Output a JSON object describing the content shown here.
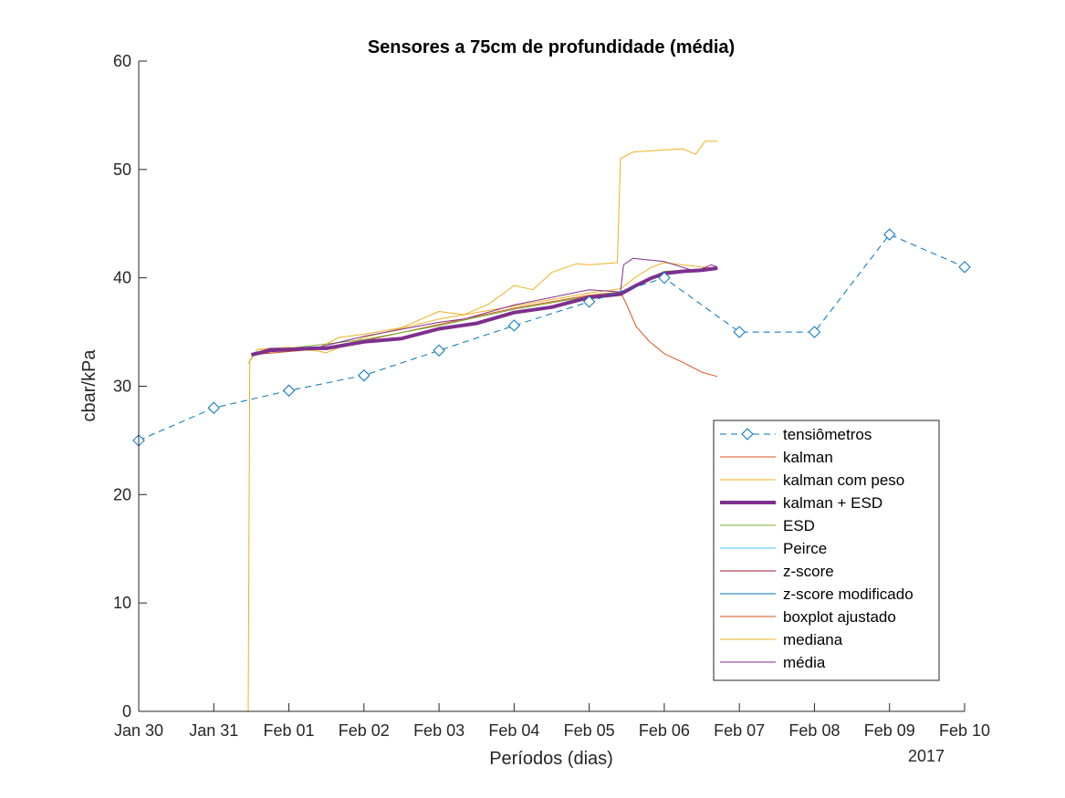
{
  "chart_data": {
    "type": "line",
    "title": "Sensores a 75cm de profundidade (média)",
    "xlabel": "Períodos (dias)",
    "ylabel": "cbar/kPa",
    "x_year_label": "2017",
    "xlim": [
      "2017-01-30",
      "2017-02-10"
    ],
    "ylim": [
      0,
      60
    ],
    "yticks": [
      0,
      10,
      20,
      30,
      40,
      50,
      60
    ],
    "xticks": [
      {
        "date": "2017-01-30",
        "label": "Jan 30"
      },
      {
        "date": "2017-01-31",
        "label": "Jan 31"
      },
      {
        "date": "2017-02-01",
        "label": "Feb 01"
      },
      {
        "date": "2017-02-02",
        "label": "Feb 02"
      },
      {
        "date": "2017-02-03",
        "label": "Feb 03"
      },
      {
        "date": "2017-02-04",
        "label": "Feb 04"
      },
      {
        "date": "2017-02-05",
        "label": "Feb 05"
      },
      {
        "date": "2017-02-06",
        "label": "Feb 06"
      },
      {
        "date": "2017-02-07",
        "label": "Feb 07"
      },
      {
        "date": "2017-02-08",
        "label": "Feb 08"
      },
      {
        "date": "2017-02-09",
        "label": "Feb 09"
      },
      {
        "date": "2017-02-10",
        "label": "Feb 10"
      }
    ],
    "grid": false,
    "legend_position": "lower-right",
    "series": [
      {
        "name": "tensiômetros",
        "color": "#0072BD",
        "style": "dashed",
        "marker": "diamond",
        "points": [
          [
            "2017-01-30 00:00",
            25
          ],
          [
            "2017-01-31 00:00",
            28
          ],
          [
            "2017-02-01 00:00",
            29.6
          ],
          [
            "2017-02-02 00:00",
            31
          ],
          [
            "2017-02-03 00:00",
            33.3
          ],
          [
            "2017-02-04 00:00",
            35.6
          ],
          [
            "2017-02-05 00:00",
            37.8
          ],
          [
            "2017-02-06 00:00",
            40
          ],
          [
            "2017-02-07 00:00",
            35
          ],
          [
            "2017-02-08 00:00",
            35
          ],
          [
            "2017-02-09 00:00",
            44
          ],
          [
            "2017-02-10 00:00",
            41
          ]
        ]
      },
      {
        "name": "kalman",
        "color": "#D95319",
        "style": "solid",
        "points": [
          [
            "2017-01-31 12:00",
            32.9
          ],
          [
            "2017-02-01 08:00",
            33.4
          ],
          [
            "2017-02-02 00:00",
            34.2
          ],
          [
            "2017-02-03 00:00",
            35.7
          ],
          [
            "2017-02-04 00:00",
            37.2
          ],
          [
            "2017-02-05 00:00",
            38.4
          ],
          [
            "2017-02-05 10:00",
            38.7
          ],
          [
            "2017-02-05 12:00",
            37.5
          ],
          [
            "2017-02-05 15:00",
            35.5
          ],
          [
            "2017-02-05 19:00",
            34.2
          ],
          [
            "2017-02-06 00:00",
            33.0
          ],
          [
            "2017-02-06 06:00",
            32.2
          ],
          [
            "2017-02-06 12:00",
            31.3
          ],
          [
            "2017-02-06 17:00",
            30.9
          ]
        ]
      },
      {
        "name": "kalman com peso",
        "color": "#EDB120",
        "style": "solid",
        "points": [
          [
            "2017-01-31 11:00",
            32.1
          ],
          [
            "2017-01-31 14:00",
            33.4
          ],
          [
            "2017-02-01 08:00",
            33.3
          ],
          [
            "2017-02-01 12:00",
            33.1
          ],
          [
            "2017-02-02 00:00",
            34.5
          ],
          [
            "2017-02-03 00:00",
            36.2
          ],
          [
            "2017-02-04 00:00",
            37.4
          ],
          [
            "2017-02-05 00:00",
            38.6
          ],
          [
            "2017-02-05 10:00",
            39.0
          ],
          [
            "2017-02-05 15:00",
            40.1
          ],
          [
            "2017-02-05 20:00",
            41.0
          ],
          [
            "2017-02-06 00:00",
            41.4
          ],
          [
            "2017-02-06 12:00",
            41.0
          ],
          [
            "2017-02-06 17:00",
            40.9
          ]
        ]
      },
      {
        "name": "kalman + ESD",
        "color": "#7E2F8E",
        "style": "solid",
        "width": 4,
        "points": [
          [
            "2017-01-31 12:00",
            32.9
          ],
          [
            "2017-01-31 18:00",
            33.3
          ],
          [
            "2017-02-01 08:00",
            33.5
          ],
          [
            "2017-02-01 12:00",
            33.5
          ],
          [
            "2017-02-02 00:00",
            34.1
          ],
          [
            "2017-02-02 12:00",
            34.4
          ],
          [
            "2017-02-03 00:00",
            35.3
          ],
          [
            "2017-02-03 12:00",
            35.8
          ],
          [
            "2017-02-04 00:00",
            36.8
          ],
          [
            "2017-02-04 12:00",
            37.3
          ],
          [
            "2017-02-05 00:00",
            38.2
          ],
          [
            "2017-02-05 10:00",
            38.5
          ],
          [
            "2017-02-05 15:00",
            39.3
          ],
          [
            "2017-02-05 20:00",
            40.0
          ],
          [
            "2017-02-06 00:00",
            40.4
          ],
          [
            "2017-02-06 06:00",
            40.6
          ],
          [
            "2017-02-06 12:00",
            40.7
          ],
          [
            "2017-02-06 17:00",
            40.9
          ]
        ]
      },
      {
        "name": "ESD",
        "color": "#77AC30",
        "style": "solid",
        "points": [
          [
            "2017-01-31 12:00",
            33.0
          ],
          [
            "2017-02-01 00:00",
            33.5
          ],
          [
            "2017-02-02 00:00",
            34.3
          ],
          [
            "2017-02-03 00:00",
            35.6
          ],
          [
            "2017-02-04 00:00",
            37.1
          ],
          [
            "2017-02-05 00:00",
            38.3
          ],
          [
            "2017-02-05 10:00",
            38.7
          ],
          [
            "2017-02-06 00:00",
            40.6
          ],
          [
            "2017-02-06 17:00",
            40.9
          ]
        ]
      },
      {
        "name": "Peirce",
        "color": "#4DBEEE",
        "style": "solid",
        "points": []
      },
      {
        "name": "z-score",
        "color": "#A2142F",
        "style": "solid",
        "points": []
      },
      {
        "name": "z-score modificado",
        "color": "#0072BD",
        "style": "solid",
        "points": []
      },
      {
        "name": "boxplot ajustado",
        "color": "#D95319",
        "style": "solid",
        "points": []
      },
      {
        "name": "mediana",
        "color": "#EDB120",
        "style": "solid",
        "points": [
          [
            "2017-01-31 11:00",
            0
          ],
          [
            "2017-01-31 11:30",
            32.4
          ],
          [
            "2017-01-31 14:00",
            33.4
          ],
          [
            "2017-02-01 00:00",
            33.6
          ],
          [
            "2017-02-01 08:00",
            33.3
          ],
          [
            "2017-02-01 16:00",
            34.5
          ],
          [
            "2017-02-02 00:00",
            34.8
          ],
          [
            "2017-02-02 12:00",
            35.4
          ],
          [
            "2017-02-03 00:00",
            36.9
          ],
          [
            "2017-02-03 08:00",
            36.6
          ],
          [
            "2017-02-03 16:00",
            37.6
          ],
          [
            "2017-02-04 00:00",
            39.3
          ],
          [
            "2017-02-04 06:00",
            38.9
          ],
          [
            "2017-02-04 12:00",
            40.5
          ],
          [
            "2017-02-04 20:00",
            41.3
          ],
          [
            "2017-02-05 00:00",
            41.2
          ],
          [
            "2017-02-05 09:00",
            41.4
          ],
          [
            "2017-02-05 10:00",
            51.0
          ],
          [
            "2017-02-05 14:00",
            51.6
          ],
          [
            "2017-02-06 00:00",
            51.8
          ],
          [
            "2017-02-06 06:00",
            51.9
          ],
          [
            "2017-02-06 10:00",
            51.4
          ],
          [
            "2017-02-06 13:00",
            52.6
          ],
          [
            "2017-02-06 17:00",
            52.6
          ]
        ]
      },
      {
        "name": "média",
        "color": "#7E2F8E",
        "style": "solid",
        "points": [
          [
            "2017-01-31 13:00",
            33.0
          ],
          [
            "2017-01-31 18:00",
            33.5
          ],
          [
            "2017-02-01 08:00",
            33.5
          ],
          [
            "2017-02-02 00:00",
            34.6
          ],
          [
            "2017-02-03 00:00",
            35.9
          ],
          [
            "2017-02-03 08:00",
            36.2
          ],
          [
            "2017-02-04 00:00",
            37.5
          ],
          [
            "2017-02-04 12:00",
            38.2
          ],
          [
            "2017-02-05 00:00",
            38.9
          ],
          [
            "2017-02-05 10:00",
            38.7
          ],
          [
            "2017-02-05 11:00",
            41.2
          ],
          [
            "2017-02-05 14:00",
            41.8
          ],
          [
            "2017-02-06 00:00",
            41.5
          ],
          [
            "2017-02-06 10:00",
            40.6
          ],
          [
            "2017-02-06 15:00",
            41.2
          ],
          [
            "2017-02-06 17:00",
            41.0
          ]
        ]
      }
    ]
  }
}
